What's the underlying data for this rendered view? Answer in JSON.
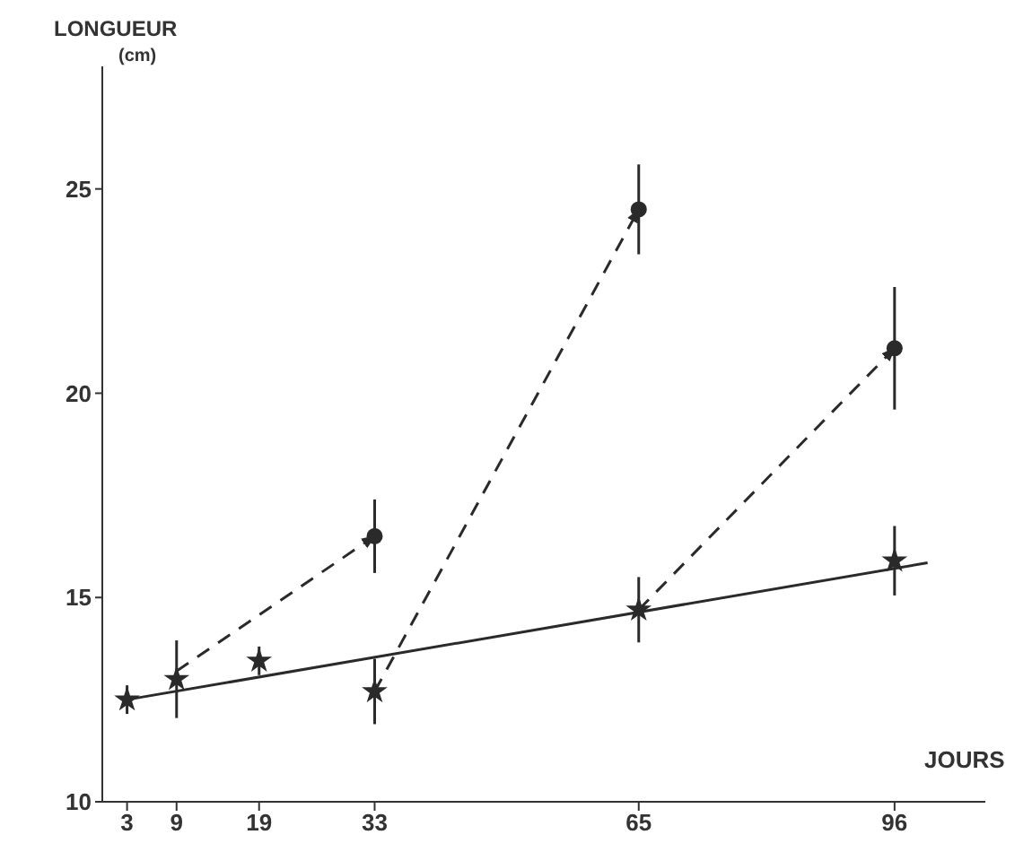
{
  "chart_data": {
    "type": "scatter",
    "xlabel": "JOURS",
    "ylabel": "LONGUEUR\n(cm)",
    "xlim": [
      0,
      107
    ],
    "ylim": [
      10,
      28
    ],
    "xticks": [
      3,
      9,
      19,
      33,
      65,
      96
    ],
    "yticks": [
      10,
      15,
      20,
      25
    ],
    "grid": false,
    "series": [
      {
        "marker": "star",
        "color": "#2a2a2a",
        "x": [
          3,
          9,
          19,
          33,
          65,
          96
        ],
        "values": [
          12.5,
          13.0,
          13.45,
          12.7,
          14.7,
          15.9
        ],
        "errors": [
          0.35,
          0.95,
          0.35,
          0.8,
          0.8,
          0.85
        ]
      },
      {
        "marker": "circle",
        "color": "#2a2a2a",
        "x": [
          33,
          65,
          96
        ],
        "values": [
          16.5,
          24.5,
          21.1
        ],
        "errors": [
          0.9,
          1.1,
          1.5
        ]
      },
      {
        "type": "line",
        "marker": "none",
        "line_style": "solid",
        "color": "#2a2a2a",
        "x": [
          3,
          100
        ],
        "values": [
          12.5,
          15.85
        ]
      },
      {
        "type": "line",
        "marker": "none",
        "line_style": "dashed",
        "color": "#2a2a2a",
        "x": [
          9,
          33
        ],
        "values": [
          13.2,
          16.5
        ]
      },
      {
        "type": "line",
        "marker": "none",
        "line_style": "dashed",
        "color": "#2a2a2a",
        "x": [
          33,
          65
        ],
        "values": [
          12.7,
          24.5
        ]
      },
      {
        "type": "line",
        "marker": "none",
        "line_style": "dashed",
        "color": "#2a2a2a",
        "x": [
          65,
          96
        ],
        "values": [
          14.7,
          21.1
        ]
      }
    ]
  }
}
